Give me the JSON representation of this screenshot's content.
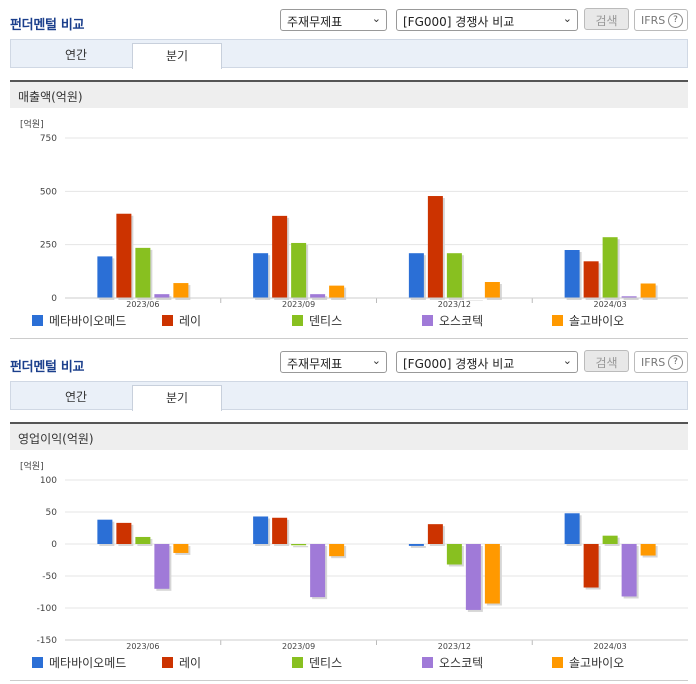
{
  "sections": [
    {
      "title": "펀더멘털 비교",
      "statement_select": "주재무제표",
      "compare_select": "[FG000] 경쟁사 비교",
      "search_label": "검색",
      "ifrs_label": "IFRS",
      "help_label": "?",
      "tabs": [
        "연간",
        "분기"
      ],
      "active_tab": "분기",
      "subheader": "매출액(억원)"
    },
    {
      "title": "펀더멘털 비교",
      "statement_select": "주재무제표",
      "compare_select": "[FG000] 경쟁사 비교",
      "search_label": "검색",
      "ifrs_label": "IFRS",
      "help_label": "?",
      "tabs": [
        "연간",
        "분기"
      ],
      "active_tab": "분기",
      "subheader": "영업이익(억원)"
    }
  ],
  "chart_data": [
    {
      "type": "bar",
      "unit_label": "[억원]",
      "categories": [
        "2023/06",
        "2023/09",
        "2023/12",
        "2024/03"
      ],
      "ylim": [
        0,
        750
      ],
      "yticks": [
        0,
        250,
        500,
        750
      ],
      "ytick_labels": [
        "0",
        "250",
        "500",
        "750"
      ],
      "grid": true,
      "legend_position": "bottom",
      "series": [
        {
          "name": "메타바이오메드",
          "color": "#2b6fd6",
          "values": [
            195,
            210,
            210,
            225
          ]
        },
        {
          "name": "레이",
          "color": "#cc3300",
          "values": [
            395,
            385,
            478,
            172
          ]
        },
        {
          "name": "덴티스",
          "color": "#88c020",
          "values": [
            235,
            258,
            210,
            285
          ]
        },
        {
          "name": "오스코텍",
          "color": "#a07ad8",
          "values": [
            18,
            18,
            0,
            8
          ]
        },
        {
          "name": "솔고바이오",
          "color": "#ff9900",
          "values": [
            70,
            58,
            75,
            68
          ]
        }
      ]
    },
    {
      "type": "bar",
      "unit_label": "[억원]",
      "categories": [
        "2023/06",
        "2023/09",
        "2023/12",
        "2024/03"
      ],
      "ylim": [
        -150,
        100
      ],
      "yticks": [
        -150,
        -100,
        -50,
        0,
        50,
        100
      ],
      "ytick_labels": [
        "-150",
        "-100",
        "-50",
        "0",
        "50",
        "100"
      ],
      "grid": true,
      "legend_position": "bottom",
      "series": [
        {
          "name": "메타바이오메드",
          "color": "#2b6fd6",
          "values": [
            38,
            43,
            -3,
            48
          ]
        },
        {
          "name": "레이",
          "color": "#cc3300",
          "values": [
            33,
            41,
            31,
            -68
          ]
        },
        {
          "name": "덴티스",
          "color": "#88c020",
          "values": [
            11,
            -2,
            -32,
            13
          ]
        },
        {
          "name": "오스코텍",
          "color": "#a07ad8",
          "values": [
            -70,
            -83,
            -103,
            -82
          ]
        },
        {
          "name": "솔고바이오",
          "color": "#ff9900",
          "values": [
            -14,
            -19,
            -93,
            -18
          ]
        }
      ]
    }
  ]
}
